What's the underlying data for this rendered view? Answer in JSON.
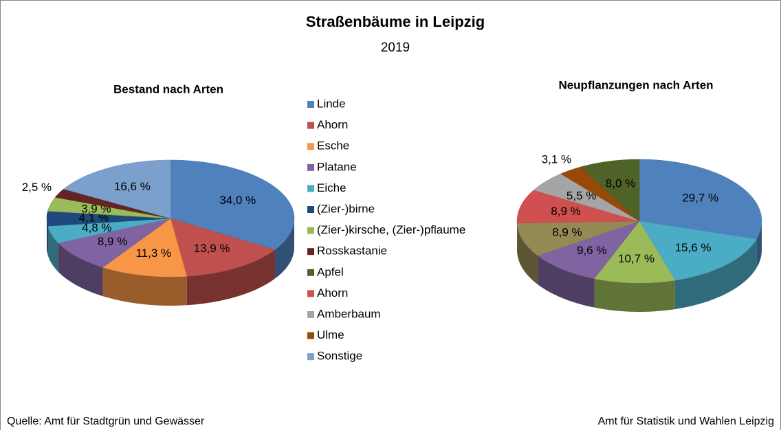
{
  "title": "Straßenbäume in Leipzig",
  "subtitle": "2019",
  "legend": [
    {
      "name": "Linde",
      "color": "#4f81bd"
    },
    {
      "name": "Ahorn",
      "color": "#c0504d"
    },
    {
      "name": "Esche",
      "color": "#f79646"
    },
    {
      "name": "Platane",
      "color": "#8064a2"
    },
    {
      "name": "Eiche",
      "color": "#4bacc6"
    },
    {
      "name": "(Zier-)birne",
      "color": "#1f497d"
    },
    {
      "name": "(Zier-)kirsche, (Zier-)pflaume",
      "color": "#9bbb59"
    },
    {
      "name": "Rosskastanie",
      "color": "#632523"
    },
    {
      "name": "Apfel",
      "color": "#4f6228"
    },
    {
      "name": "Ahorn",
      "color": "#d0504f"
    },
    {
      "name": "Amberbaum",
      "color": "#a5a5a5"
    },
    {
      "name": "Ulme",
      "color": "#984807"
    },
    {
      "name": "Sonstige",
      "color": "#7ba0cd"
    }
  ],
  "chart_data": [
    {
      "type": "pie",
      "title": "Bestand nach Arten",
      "values": [
        34.0,
        13.9,
        11.3,
        8.9,
        4.8,
        4.1,
        3.9,
        2.5,
        16.6
      ],
      "value_labels": [
        "34,0 %",
        "13,9 %",
        "11,3 %",
        "8,9 %",
        "4,8 %",
        "4,1 %",
        "3,9 %",
        "2,5 %",
        "16,6 %"
      ],
      "colors": [
        "#4f81bd",
        "#c0504d",
        "#f79646",
        "#8064a2",
        "#4bacc6",
        "#1f497d",
        "#9bbb59",
        "#632523",
        "#7ba0cd"
      ]
    },
    {
      "type": "pie",
      "title": "Neupflanzungen nach Arten",
      "values": [
        29.7,
        15.6,
        10.7,
        9.6,
        8.9,
        8.9,
        5.5,
        3.1,
        8.0
      ],
      "value_labels": [
        "29,7 %",
        "15,6 %",
        "10,7 %",
        "9,6 %",
        "8,9 %",
        "8,9 %",
        "5,5 %",
        "3,1 %",
        "8,0 %"
      ],
      "colors": [
        "#4f81bd",
        "#4bacc6",
        "#9bbb59",
        "#8064a2",
        "#948a54",
        "#d0504f",
        "#a5a5a5",
        "#984807",
        "#4f6228"
      ]
    }
  ],
  "footer": {
    "left": "Quelle: Amt für Stadtgrün und Gewässer",
    "right": "Amt für Statistik und Wahlen Leipzig"
  }
}
